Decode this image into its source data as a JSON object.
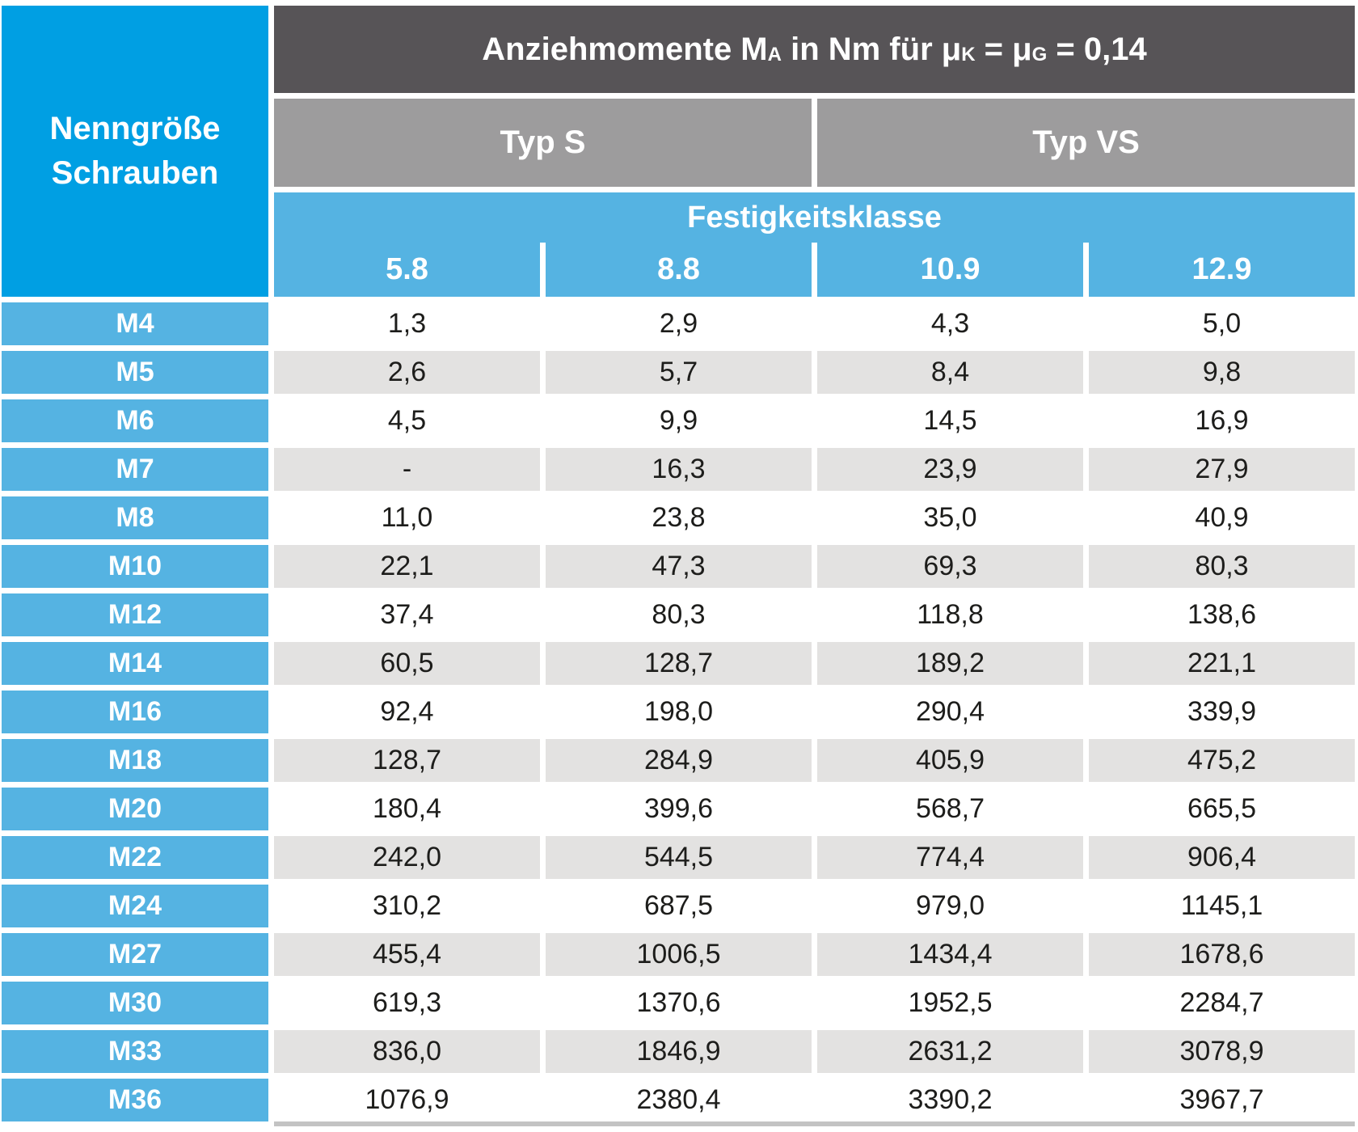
{
  "table": {
    "corner": {
      "line1": "Nenngröße",
      "line2": "Schrauben"
    },
    "main_header": {
      "part1": "Anziehmomente M",
      "sub1": "A",
      "part2": " in Nm für μ",
      "sub2": "K",
      "part3": " = μ",
      "sub3": "G",
      "part4": " = 0,14"
    },
    "type_headers": [
      "Typ S",
      "Typ VS"
    ],
    "class_header": "Festigkeitsklasse",
    "class_columns": [
      "5.8",
      "8.8",
      "10.9",
      "12.9"
    ],
    "rows": [
      {
        "label": "M4",
        "values": [
          "1,3",
          "2,9",
          "4,3",
          "5,0"
        ]
      },
      {
        "label": "M5",
        "values": [
          "2,6",
          "5,7",
          "8,4",
          "9,8"
        ]
      },
      {
        "label": "M6",
        "values": [
          "4,5",
          "9,9",
          "14,5",
          "16,9"
        ]
      },
      {
        "label": "M7",
        "values": [
          "-",
          "16,3",
          "23,9",
          "27,9"
        ]
      },
      {
        "label": "M8",
        "values": [
          "11,0",
          "23,8",
          "35,0",
          "40,9"
        ]
      },
      {
        "label": "M10",
        "values": [
          "22,1",
          "47,3",
          "69,3",
          "80,3"
        ]
      },
      {
        "label": "M12",
        "values": [
          "37,4",
          "80,3",
          "118,8",
          "138,6"
        ]
      },
      {
        "label": "M14",
        "values": [
          "60,5",
          "128,7",
          "189,2",
          "221,1"
        ]
      },
      {
        "label": "M16",
        "values": [
          "92,4",
          "198,0",
          "290,4",
          "339,9"
        ]
      },
      {
        "label": "M18",
        "values": [
          "128,7",
          "284,9",
          "405,9",
          "475,2"
        ]
      },
      {
        "label": "M20",
        "values": [
          "180,4",
          "399,6",
          "568,7",
          "665,5"
        ]
      },
      {
        "label": "M22",
        "values": [
          "242,0",
          "544,5",
          "774,4",
          "906,4"
        ]
      },
      {
        "label": "M24",
        "values": [
          "310,2",
          "687,5",
          "979,0",
          "1145,1"
        ]
      },
      {
        "label": "M27",
        "values": [
          "455,4",
          "1006,5",
          "1434,4",
          "1678,6"
        ]
      },
      {
        "label": "M30",
        "values": [
          "619,3",
          "1370,6",
          "1952,5",
          "2284,7"
        ]
      },
      {
        "label": "M33",
        "values": [
          "836,0",
          "1846,9",
          "2631,2",
          "3078,9"
        ]
      },
      {
        "label": "M36",
        "values": [
          "1076,9",
          "2380,4",
          "3390,2",
          "3967,7"
        ]
      }
    ]
  },
  "colors": {
    "accent_blue": "#009FE3",
    "light_blue": "#55B3E2",
    "dark_gray": "#575457",
    "medium_gray": "#9D9C9D",
    "row_gray": "#E3E2E1",
    "text_dark": "#1D1D1B",
    "bottom_strip": "#C3C3C3"
  },
  "chart_data": {
    "type": "table",
    "title": "Anziehmomente MA in Nm für μK = μG = 0,14",
    "row_header": "Nenngröße Schrauben",
    "subheader": "Festigkeitsklasse",
    "column_groups": [
      {
        "label": "Typ S",
        "columns": [
          "5.8",
          "8.8"
        ]
      },
      {
        "label": "Typ VS",
        "columns": [
          "10.9",
          "12.9"
        ]
      }
    ],
    "columns": [
      "5.8",
      "8.8",
      "10.9",
      "12.9"
    ],
    "row_labels": [
      "M4",
      "M5",
      "M6",
      "M7",
      "M8",
      "M10",
      "M12",
      "M14",
      "M16",
      "M18",
      "M20",
      "M22",
      "M24",
      "M27",
      "M30",
      "M33",
      "M36"
    ],
    "values": [
      [
        1.3,
        2.9,
        4.3,
        5.0
      ],
      [
        2.6,
        5.7,
        8.4,
        9.8
      ],
      [
        4.5,
        9.9,
        14.5,
        16.9
      ],
      [
        null,
        16.3,
        23.9,
        27.9
      ],
      [
        11.0,
        23.8,
        35.0,
        40.9
      ],
      [
        22.1,
        47.3,
        69.3,
        80.3
      ],
      [
        37.4,
        80.3,
        118.8,
        138.6
      ],
      [
        60.5,
        128.7,
        189.2,
        221.1
      ],
      [
        92.4,
        198.0,
        290.4,
        339.9
      ],
      [
        128.7,
        284.9,
        405.9,
        475.2
      ],
      [
        180.4,
        399.6,
        568.7,
        665.5
      ],
      [
        242.0,
        544.5,
        774.4,
        906.4
      ],
      [
        310.2,
        687.5,
        979.0,
        1145.1
      ],
      [
        455.4,
        1006.5,
        1434.4,
        1678.6
      ],
      [
        619.3,
        1370.6,
        1952.5,
        2284.7
      ],
      [
        836.0,
        1846.9,
        2631.2,
        3078.9
      ],
      [
        1076.9,
        2380.4,
        3390.2,
        3967.7
      ]
    ],
    "units": "Nm",
    "notes_visible_on_screen_only": "decimal comma formatting; dash shown for M7 class 5.8"
  }
}
